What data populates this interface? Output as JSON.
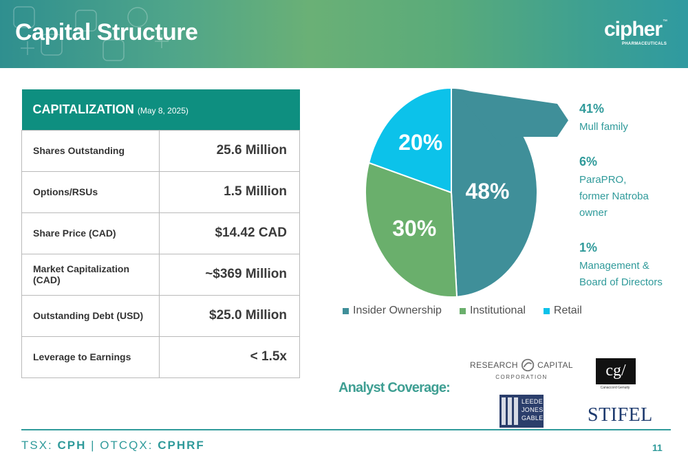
{
  "header": {
    "title": "Capital Structure",
    "logo_text": "cipher",
    "logo_tm": "™",
    "logo_subtext": "PHARMACEUTICALS"
  },
  "capitalization": {
    "title": "CAPITALIZATION",
    "date": "(May 8, 2025)",
    "rows": [
      {
        "label": "Shares Outstanding",
        "value": "25.6 Million"
      },
      {
        "label": "Options/RSUs",
        "value": "1.5 Million"
      },
      {
        "label": "Share Price (CAD)",
        "value": "$14.42 CAD"
      },
      {
        "label": "Market Capitalization (CAD)",
        "value": "~$369 Million"
      },
      {
        "label": "Outstanding Debt (USD)",
        "value": "$25.0 Million"
      },
      {
        "label": "Leverage to Earnings",
        "value": "< 1.5x"
      }
    ]
  },
  "chart_data": {
    "type": "pie",
    "categories": [
      "Insider Ownership",
      "Institutional",
      "Retail"
    ],
    "values": [
      48,
      30,
      20
    ],
    "labels": [
      "48%",
      "30%",
      "20%"
    ],
    "colors": [
      "#3f8f99",
      "#6aaf6c",
      "#0cc2ea"
    ],
    "legend_position": "bottom"
  },
  "insider_breakdown": [
    {
      "pct": "41%",
      "desc": [
        "Mull family"
      ]
    },
    {
      "pct": "6%",
      "desc": [
        "ParaPRO,",
        "former Natroba",
        "owner"
      ]
    },
    {
      "pct": "1%",
      "desc": [
        "Management &",
        "Board of Directors"
      ]
    }
  ],
  "analyst": {
    "title": "Analyst Coverage:",
    "firms": {
      "research_capital_left": "RESEARCH",
      "research_capital_right": "CAPITAL",
      "research_capital_sub": "CORPORATION",
      "canaccord_mark": "cg/",
      "canaccord_sub": "Canaccord Genuity",
      "ljg_lines": [
        "LEEDE",
        "JONES",
        "GABLE"
      ],
      "stifel": "STIFEL"
    }
  },
  "footer": {
    "ticker_prefix1": "TSX: ",
    "ticker1": "CPH",
    "separator": " | ",
    "ticker_prefix2": "OTCQX: ",
    "ticker2": "CPHRF",
    "page_number": "11"
  }
}
